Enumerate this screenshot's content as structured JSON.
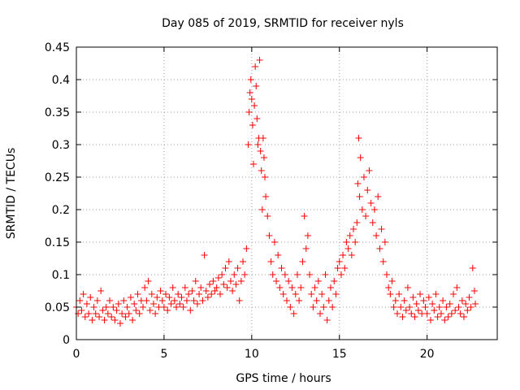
{
  "chart_data": {
    "type": "scatter",
    "title": "Day 085 of 2019, SRMTID for receiver nyls",
    "xlabel": "GPS time / hours",
    "ylabel": "SRMTID / TECUs",
    "xlim": [
      0,
      24
    ],
    "ylim": [
      0,
      0.45
    ],
    "xticks": [
      0,
      5,
      10,
      15,
      20
    ],
    "yticks": [
      0,
      0.05,
      0.1,
      0.15,
      0.2,
      0.25,
      0.3,
      0.35,
      0.4,
      0.45
    ],
    "grid": true,
    "marker": "+",
    "series": [
      {
        "name": "SRMTID",
        "color": "#ff0000",
        "points": [
          [
            0.0,
            0.05
          ],
          [
            0.1,
            0.04
          ],
          [
            0.2,
            0.06
          ],
          [
            0.3,
            0.045
          ],
          [
            0.4,
            0.07
          ],
          [
            0.5,
            0.035
          ],
          [
            0.6,
            0.055
          ],
          [
            0.7,
            0.04
          ],
          [
            0.8,
            0.065
          ],
          [
            0.9,
            0.03
          ],
          [
            1.0,
            0.05
          ],
          [
            1.1,
            0.04
          ],
          [
            1.2,
            0.06
          ],
          [
            1.3,
            0.035
          ],
          [
            1.4,
            0.075
          ],
          [
            1.5,
            0.045
          ],
          [
            1.6,
            0.03
          ],
          [
            1.7,
            0.05
          ],
          [
            1.8,
            0.04
          ],
          [
            1.9,
            0.06
          ],
          [
            2.0,
            0.035
          ],
          [
            2.1,
            0.05
          ],
          [
            2.2,
            0.03
          ],
          [
            2.3,
            0.045
          ],
          [
            2.4,
            0.055
          ],
          [
            2.5,
            0.025
          ],
          [
            2.6,
            0.04
          ],
          [
            2.7,
            0.06
          ],
          [
            2.8,
            0.035
          ],
          [
            2.9,
            0.05
          ],
          [
            3.0,
            0.04
          ],
          [
            3.1,
            0.065
          ],
          [
            3.2,
            0.03
          ],
          [
            3.3,
            0.055
          ],
          [
            3.4,
            0.045
          ],
          [
            3.5,
            0.07
          ],
          [
            3.6,
            0.04
          ],
          [
            3.7,
            0.06
          ],
          [
            3.8,
            0.05
          ],
          [
            3.9,
            0.08
          ],
          [
            4.0,
            0.06
          ],
          [
            4.1,
            0.09
          ],
          [
            4.2,
            0.045
          ],
          [
            4.3,
            0.07
          ],
          [
            4.4,
            0.055
          ],
          [
            4.5,
            0.04
          ],
          [
            4.6,
            0.065
          ],
          [
            4.7,
            0.05
          ],
          [
            4.8,
            0.075
          ],
          [
            4.9,
            0.06
          ],
          [
            5.0,
            0.05
          ],
          [
            5.1,
            0.07
          ],
          [
            5.2,
            0.045
          ],
          [
            5.3,
            0.065
          ],
          [
            5.4,
            0.055
          ],
          [
            5.5,
            0.08
          ],
          [
            5.6,
            0.06
          ],
          [
            5.7,
            0.05
          ],
          [
            5.8,
            0.07
          ],
          [
            5.9,
            0.055
          ],
          [
            6.0,
            0.065
          ],
          [
            6.1,
            0.05
          ],
          [
            6.2,
            0.08
          ],
          [
            6.3,
            0.06
          ],
          [
            6.4,
            0.07
          ],
          [
            6.5,
            0.045
          ],
          [
            6.6,
            0.075
          ],
          [
            6.7,
            0.06
          ],
          [
            6.8,
            0.09
          ],
          [
            6.9,
            0.055
          ],
          [
            7.0,
            0.07
          ],
          [
            7.1,
            0.08
          ],
          [
            7.2,
            0.06
          ],
          [
            7.3,
            0.13
          ],
          [
            7.4,
            0.075
          ],
          [
            7.5,
            0.065
          ],
          [
            7.6,
            0.085
          ],
          [
            7.7,
            0.07
          ],
          [
            7.8,
            0.09
          ],
          [
            7.9,
            0.075
          ],
          [
            8.0,
            0.08
          ],
          [
            8.1,
            0.095
          ],
          [
            8.2,
            0.07
          ],
          [
            8.3,
            0.1
          ],
          [
            8.4,
            0.085
          ],
          [
            8.5,
            0.11
          ],
          [
            8.6,
            0.08
          ],
          [
            8.7,
            0.12
          ],
          [
            8.8,
            0.09
          ],
          [
            8.9,
            0.075
          ],
          [
            9.0,
            0.1
          ],
          [
            9.1,
            0.085
          ],
          [
            9.2,
            0.11
          ],
          [
            9.3,
            0.06
          ],
          [
            9.4,
            0.09
          ],
          [
            9.5,
            0.12
          ],
          [
            9.6,
            0.1
          ],
          [
            9.7,
            0.14
          ],
          [
            9.8,
            0.3
          ],
          [
            9.85,
            0.35
          ],
          [
            9.9,
            0.38
          ],
          [
            9.95,
            0.4
          ],
          [
            10.0,
            0.37
          ],
          [
            10.05,
            0.33
          ],
          [
            10.1,
            0.27
          ],
          [
            10.15,
            0.36
          ],
          [
            10.2,
            0.42
          ],
          [
            10.25,
            0.39
          ],
          [
            10.3,
            0.34
          ],
          [
            10.35,
            0.3
          ],
          [
            10.4,
            0.31
          ],
          [
            10.45,
            0.43
          ],
          [
            10.5,
            0.29
          ],
          [
            10.55,
            0.26
          ],
          [
            10.6,
            0.2
          ],
          [
            10.65,
            0.31
          ],
          [
            10.7,
            0.28
          ],
          [
            10.75,
            0.25
          ],
          [
            10.8,
            0.22
          ],
          [
            10.9,
            0.19
          ],
          [
            11.0,
            0.16
          ],
          [
            11.1,
            0.12
          ],
          [
            11.2,
            0.1
          ],
          [
            11.3,
            0.15
          ],
          [
            11.4,
            0.09
          ],
          [
            11.5,
            0.13
          ],
          [
            11.6,
            0.08
          ],
          [
            11.7,
            0.11
          ],
          [
            11.8,
            0.07
          ],
          [
            11.9,
            0.1
          ],
          [
            12.0,
            0.06
          ],
          [
            12.1,
            0.09
          ],
          [
            12.2,
            0.05
          ],
          [
            12.3,
            0.08
          ],
          [
            12.4,
            0.04
          ],
          [
            12.5,
            0.07
          ],
          [
            12.6,
            0.1
          ],
          [
            12.7,
            0.06
          ],
          [
            12.8,
            0.08
          ],
          [
            12.9,
            0.12
          ],
          [
            13.0,
            0.19
          ],
          [
            13.1,
            0.14
          ],
          [
            13.2,
            0.16
          ],
          [
            13.3,
            0.1
          ],
          [
            13.4,
            0.07
          ],
          [
            13.5,
            0.05
          ],
          [
            13.6,
            0.08
          ],
          [
            13.7,
            0.06
          ],
          [
            13.8,
            0.09
          ],
          [
            13.9,
            0.04
          ],
          [
            14.0,
            0.07
          ],
          [
            14.1,
            0.05
          ],
          [
            14.2,
            0.1
          ],
          [
            14.3,
            0.03
          ],
          [
            14.4,
            0.06
          ],
          [
            14.5,
            0.08
          ],
          [
            14.6,
            0.05
          ],
          [
            14.7,
            0.09
          ],
          [
            14.8,
            0.07
          ],
          [
            14.9,
            0.11
          ],
          [
            15.0,
            0.12
          ],
          [
            15.1,
            0.1
          ],
          [
            15.2,
            0.13
          ],
          [
            15.3,
            0.11
          ],
          [
            15.4,
            0.15
          ],
          [
            15.5,
            0.14
          ],
          [
            15.6,
            0.16
          ],
          [
            15.7,
            0.13
          ],
          [
            15.8,
            0.17
          ],
          [
            15.9,
            0.15
          ],
          [
            16.0,
            0.18
          ],
          [
            16.05,
            0.24
          ],
          [
            16.1,
            0.31
          ],
          [
            16.15,
            0.22
          ],
          [
            16.2,
            0.28
          ],
          [
            16.3,
            0.2
          ],
          [
            16.4,
            0.25
          ],
          [
            16.5,
            0.19
          ],
          [
            16.6,
            0.23
          ],
          [
            16.7,
            0.26
          ],
          [
            16.8,
            0.21
          ],
          [
            16.9,
            0.18
          ],
          [
            17.0,
            0.2
          ],
          [
            17.1,
            0.16
          ],
          [
            17.2,
            0.22
          ],
          [
            17.3,
            0.14
          ],
          [
            17.4,
            0.17
          ],
          [
            17.5,
            0.12
          ],
          [
            17.6,
            0.15
          ],
          [
            17.7,
            0.1
          ],
          [
            17.8,
            0.08
          ],
          [
            17.9,
            0.07
          ],
          [
            18.0,
            0.09
          ],
          [
            18.1,
            0.05
          ],
          [
            18.2,
            0.06
          ],
          [
            18.3,
            0.04
          ],
          [
            18.4,
            0.07
          ],
          [
            18.5,
            0.05
          ],
          [
            18.6,
            0.035
          ],
          [
            18.7,
            0.06
          ],
          [
            18.8,
            0.045
          ],
          [
            18.9,
            0.08
          ],
          [
            19.0,
            0.05
          ],
          [
            19.1,
            0.04
          ],
          [
            19.2,
            0.065
          ],
          [
            19.3,
            0.035
          ],
          [
            19.4,
            0.055
          ],
          [
            19.5,
            0.045
          ],
          [
            19.6,
            0.07
          ],
          [
            19.7,
            0.04
          ],
          [
            19.8,
            0.06
          ],
          [
            19.9,
            0.05
          ],
          [
            20.0,
            0.04
          ],
          [
            20.1,
            0.065
          ],
          [
            20.2,
            0.03
          ],
          [
            20.3,
            0.055
          ],
          [
            20.4,
            0.045
          ],
          [
            20.5,
            0.07
          ],
          [
            20.6,
            0.035
          ],
          [
            20.7,
            0.05
          ],
          [
            20.8,
            0.04
          ],
          [
            20.9,
            0.06
          ],
          [
            21.0,
            0.03
          ],
          [
            21.1,
            0.05
          ],
          [
            21.2,
            0.035
          ],
          [
            21.3,
            0.055
          ],
          [
            21.4,
            0.04
          ],
          [
            21.5,
            0.07
          ],
          [
            21.6,
            0.045
          ],
          [
            21.7,
            0.08
          ],
          [
            21.8,
            0.05
          ],
          [
            21.9,
            0.04
          ],
          [
            22.0,
            0.06
          ],
          [
            22.1,
            0.035
          ],
          [
            22.2,
            0.055
          ],
          [
            22.3,
            0.045
          ],
          [
            22.4,
            0.065
          ],
          [
            22.5,
            0.05
          ],
          [
            22.6,
            0.11
          ],
          [
            22.7,
            0.075
          ],
          [
            22.75,
            0.055
          ]
        ]
      }
    ]
  }
}
